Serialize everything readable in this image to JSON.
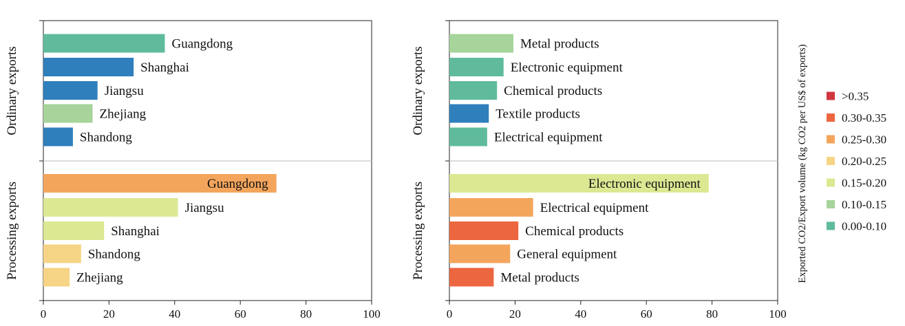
{
  "colors": {
    "0.00-0.10": "#5fbb9c",
    "0.10-0.15": "#a6d49a",
    "0.15-0.20": "#dce892",
    "0.20-0.25": "#f6d486",
    "0.25-0.30": "#f4a55c",
    "0.30-0.35": "#ec6640",
    ">0.35": "#d0363e",
    "Shanghai": "#2f7fbc"
  },
  "legend": {
    "title": "Exported CO2/Export volume (kg CO2 per US$ of exports)",
    "entries": [
      {
        "label": ">0.35",
        "color": "#d0363e"
      },
      {
        "label": "0.30-0.35",
        "color": "#ec6640"
      },
      {
        "label": "0.25-0.30",
        "color": "#f4a55c"
      },
      {
        "label": "0.20-0.25",
        "color": "#f6d486"
      },
      {
        "label": "0.15-0.20",
        "color": "#dce892"
      },
      {
        "label": "0.10-0.15",
        "color": "#a6d49a"
      },
      {
        "label": "0.00-0.10",
        "color": "#5fbb9c"
      }
    ]
  },
  "chart_data": [
    {
      "type": "bar",
      "orientation": "horizontal",
      "xlim": [
        0,
        100
      ],
      "xticks": [
        0,
        20,
        40,
        60,
        80,
        100
      ],
      "groups": [
        {
          "name": "Ordinary exports",
          "bars": [
            {
              "label": "Guangdong",
              "value": 37,
              "color": "#5fbb9c",
              "label_inside": false
            },
            {
              "label": "Shanghai",
              "value": 27.5,
              "color": "#2f7fbc",
              "label_inside": false
            },
            {
              "label": "Jiangsu",
              "value": 16.5,
              "color": "#2f7fbc",
              "label_inside": false
            },
            {
              "label": "Zhejiang",
              "value": 15,
              "color": "#a6d49a",
              "label_inside": false
            },
            {
              "label": "Shandong",
              "value": 9,
              "color": "#2f7fbc",
              "label_inside": false
            }
          ]
        },
        {
          "name": "Processing exports",
          "bars": [
            {
              "label": "Guangdong",
              "value": 71,
              "color": "#f4a55c",
              "label_inside": true
            },
            {
              "label": "Jiangsu",
              "value": 41,
              "color": "#dce892",
              "label_inside": false
            },
            {
              "label": "Shanghai",
              "value": 18.5,
              "color": "#dce892",
              "label_inside": false
            },
            {
              "label": "Shandong",
              "value": 11.5,
              "color": "#f6d486",
              "label_inside": false
            },
            {
              "label": "Zhejiang",
              "value": 8,
              "color": "#f6d486",
              "label_inside": false
            }
          ]
        }
      ]
    },
    {
      "type": "bar",
      "orientation": "horizontal",
      "xlim": [
        0,
        100
      ],
      "xticks": [
        0,
        20,
        40,
        60,
        80,
        100
      ],
      "groups": [
        {
          "name": "Ordinary exports",
          "bars": [
            {
              "label": "Metal products",
              "value": 19.5,
              "color": "#a6d49a",
              "label_inside": false
            },
            {
              "label": "Electronic equipment",
              "value": 16.5,
              "color": "#5fbb9c",
              "label_inside": false
            },
            {
              "label": "Chemical products",
              "value": 14.5,
              "color": "#5fbb9c",
              "label_inside": false
            },
            {
              "label": "Textile products",
              "value": 12,
              "color": "#2f7fbc",
              "label_inside": false
            },
            {
              "label": "Electrical equipment",
              "value": 11.5,
              "color": "#5fbb9c",
              "label_inside": false
            }
          ]
        },
        {
          "name": "Processing exports",
          "bars": [
            {
              "label": "Electronic equipment",
              "value": 79,
              "color": "#dce892",
              "label_inside": true
            },
            {
              "label": "Electrical equipment",
              "value": 25.5,
              "color": "#f4a55c",
              "label_inside": false
            },
            {
              "label": "Chemical products",
              "value": 21,
              "color": "#ec6640",
              "label_inside": false
            },
            {
              "label": "General equipment",
              "value": 18.5,
              "color": "#f4a55c",
              "label_inside": false
            },
            {
              "label": "Metal products",
              "value": 13.5,
              "color": "#ec6640",
              "label_inside": false
            }
          ]
        }
      ]
    }
  ]
}
